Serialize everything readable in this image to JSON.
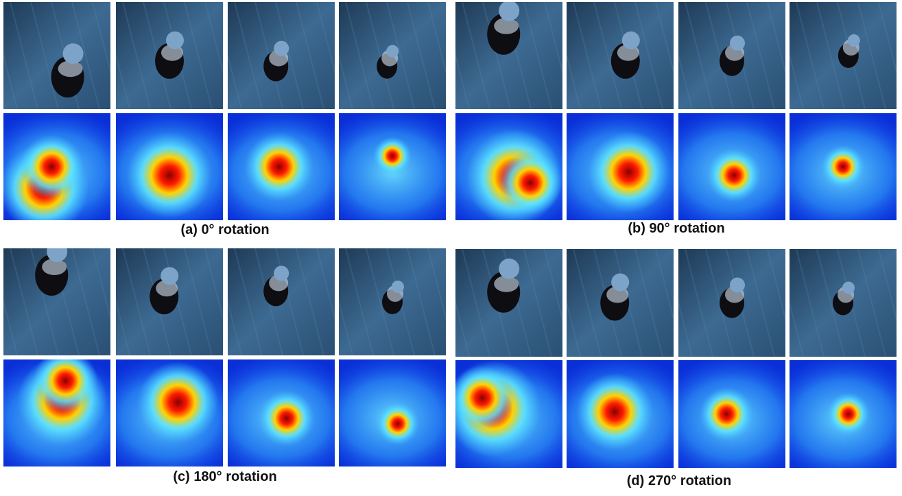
{
  "panels": [
    {
      "caption": "(a) 0° rotation"
    },
    {
      "caption": "(b) 90° rotation"
    },
    {
      "caption": "(c) 180° rotation"
    },
    {
      "caption": "(d) 270° rotation"
    }
  ]
}
